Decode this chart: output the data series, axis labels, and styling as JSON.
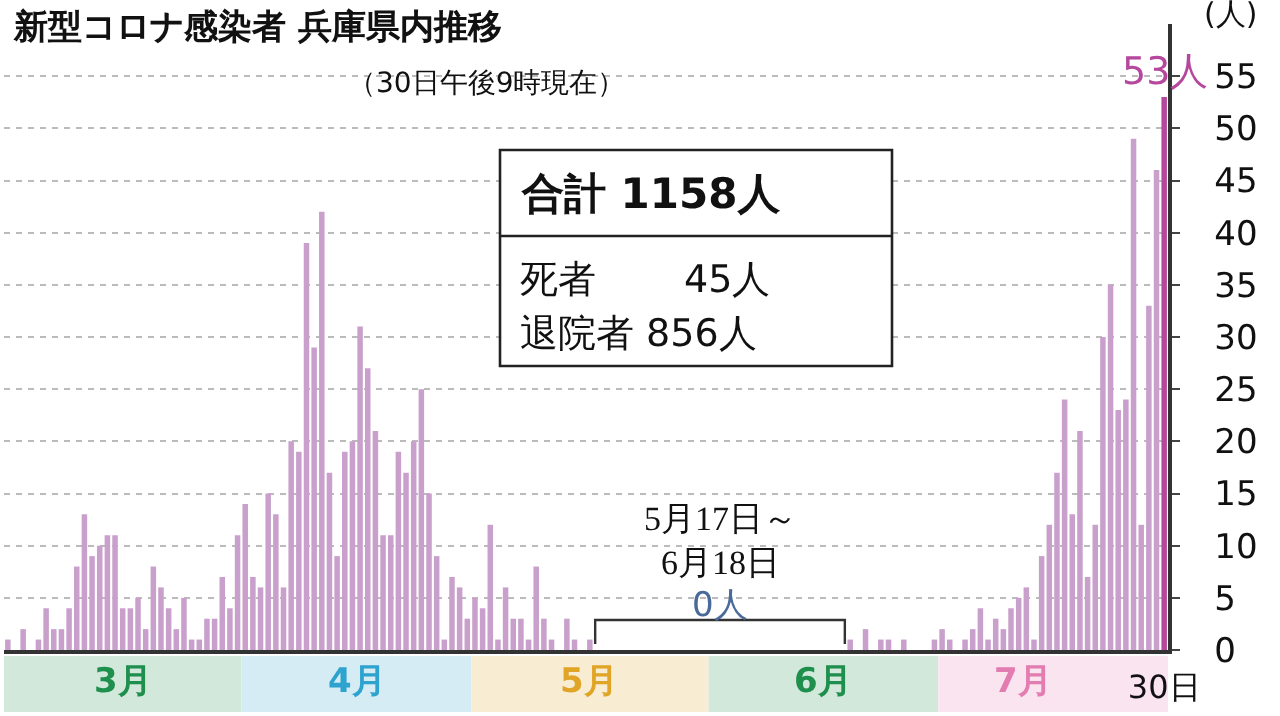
{
  "chart_data": {
    "type": "bar",
    "title": "新型コロナ感染者 兵庫県内推移",
    "subtitle": "（30日午後9時現在）",
    "ylabel": "(人)",
    "categories": [
      null,
      null,
      null,
      null,
      null,
      null,
      null,
      null,
      null,
      null,
      null,
      null,
      null,
      null,
      null,
      null,
      null,
      null,
      null,
      null,
      null,
      null,
      null,
      null,
      null,
      null,
      null,
      null,
      null,
      null,
      null,
      null,
      null,
      null,
      null,
      null,
      null,
      null,
      null,
      null,
      null,
      null,
      null,
      null,
      null,
      null,
      null,
      null,
      null,
      null,
      null,
      null,
      null,
      null,
      null,
      null,
      null,
      null,
      null,
      null,
      null,
      null,
      null,
      null,
      null,
      null,
      null,
      null,
      null,
      null,
      null,
      null,
      null,
      null,
      null,
      null,
      null,
      null,
      null,
      null,
      null,
      null,
      null,
      null,
      null,
      null,
      null,
      null,
      null,
      null,
      null,
      null,
      null,
      null,
      null,
      null,
      null,
      null,
      null,
      null,
      null,
      null,
      null,
      null,
      null,
      null,
      null,
      null,
      null,
      null,
      null,
      null,
      null,
      null,
      null,
      null,
      null,
      null,
      null,
      null,
      null,
      null,
      null,
      null,
      null,
      null,
      null,
      null,
      null,
      null,
      null,
      null,
      null,
      null,
      null,
      null,
      null,
      null,
      null,
      null,
      null,
      null,
      null,
      null,
      null,
      null,
      null,
      null,
      null,
      null,
      null,
      "30日"
    ],
    "values": [
      1,
      0,
      2,
      0,
      1,
      4,
      2,
      2,
      4,
      8,
      13,
      9,
      10,
      11,
      11,
      4,
      4,
      5,
      2,
      8,
      6,
      4,
      2,
      5,
      1,
      1,
      3,
      3,
      7,
      4,
      11,
      14,
      7,
      6,
      15,
      13,
      6,
      20,
      19,
      39,
      29,
      42,
      17,
      9,
      19,
      20,
      31,
      27,
      21,
      11,
      11,
      19,
      17,
      20,
      25,
      15,
      9,
      1,
      7,
      6,
      3,
      5,
      4,
      12,
      1,
      6,
      3,
      3,
      1,
      8,
      3,
      1,
      0,
      3,
      1,
      0,
      1,
      0,
      0,
      0,
      0,
      0,
      0,
      0,
      0,
      0,
      0,
      0,
      0,
      0,
      0,
      0,
      0,
      0,
      0,
      0,
      0,
      0,
      0,
      0,
      0,
      0,
      0,
      0,
      0,
      0,
      0,
      0,
      0,
      0,
      1,
      0,
      2,
      0,
      1,
      1,
      0,
      1,
      0,
      0,
      0,
      1,
      2,
      1,
      0,
      1,
      2,
      4,
      1,
      3,
      2,
      4,
      5,
      6,
      1,
      9,
      12,
      17,
      24,
      13,
      21,
      7,
      12,
      30,
      35,
      23,
      24,
      49,
      12,
      33,
      46,
      53
    ],
    "colors": [
      "#c9a0cc",
      "#c9a0cc",
      "#c9a0cc",
      "#c9a0cc",
      "#c9a0cc",
      "#c9a0cc",
      "#c9a0cc",
      "#c9a0cc",
      "#c9a0cc",
      "#c9a0cc",
      "#c9a0cc",
      "#c9a0cc",
      "#c9a0cc",
      "#c9a0cc",
      "#c9a0cc",
      "#c9a0cc",
      "#c9a0cc",
      "#c9a0cc",
      "#c9a0cc",
      "#c9a0cc",
      "#c9a0cc",
      "#c9a0cc",
      "#c9a0cc",
      "#c9a0cc",
      "#c9a0cc",
      "#c9a0cc",
      "#c9a0cc",
      "#c9a0cc",
      "#c9a0cc",
      "#c9a0cc",
      "#c9a0cc",
      "#c9a0cc",
      "#c9a0cc",
      "#c9a0cc",
      "#c9a0cc",
      "#c9a0cc",
      "#c9a0cc",
      "#c9a0cc",
      "#c9a0cc",
      "#c9a0cc",
      "#c9a0cc",
      "#c9a0cc",
      "#c9a0cc",
      "#c9a0cc",
      "#c9a0cc",
      "#c9a0cc",
      "#c9a0cc",
      "#c9a0cc",
      "#c9a0cc",
      "#c9a0cc",
      "#c9a0cc",
      "#c9a0cc",
      "#c9a0cc",
      "#c9a0cc",
      "#c9a0cc",
      "#c9a0cc",
      "#c9a0cc",
      "#c9a0cc",
      "#c9a0cc",
      "#c9a0cc",
      "#c9a0cc",
      "#c9a0cc",
      "#c9a0cc",
      "#c9a0cc",
      "#c9a0cc",
      "#c9a0cc",
      "#c9a0cc",
      "#c9a0cc",
      "#c9a0cc",
      "#c9a0cc",
      "#c9a0cc",
      "#c9a0cc",
      "#c9a0cc",
      "#c9a0cc",
      "#c9a0cc",
      "#c9a0cc",
      "#c9a0cc",
      "#c9a0cc",
      "#c9a0cc",
      "#c9a0cc",
      "#c9a0cc",
      "#c9a0cc",
      "#c9a0cc",
      "#c9a0cc",
      "#c9a0cc",
      "#c9a0cc",
      "#c9a0cc",
      "#c9a0cc",
      "#c9a0cc",
      "#c9a0cc",
      "#c9a0cc",
      "#c9a0cc",
      "#c9a0cc",
      "#c9a0cc",
      "#c9a0cc",
      "#c9a0cc",
      "#c9a0cc",
      "#c9a0cc",
      "#c9a0cc",
      "#c9a0cc",
      "#c9a0cc",
      "#c9a0cc",
      "#c9a0cc",
      "#c9a0cc",
      "#c9a0cc",
      "#c9a0cc",
      "#c9a0cc",
      "#c9a0cc",
      "#c9a0cc",
      "#c9a0cc",
      "#c9a0cc",
      "#c9a0cc",
      "#c9a0cc",
      "#c9a0cc",
      "#c9a0cc",
      "#c9a0cc",
      "#c9a0cc",
      "#c9a0cc",
      "#c9a0cc",
      "#c9a0cc",
      "#c9a0cc",
      "#c9a0cc",
      "#c9a0cc",
      "#c9a0cc",
      "#c9a0cc",
      "#c9a0cc",
      "#c9a0cc",
      "#c9a0cc",
      "#c9a0cc",
      "#c9a0cc",
      "#c9a0cc",
      "#c9a0cc",
      "#c9a0cc",
      "#c9a0cc",
      "#c9a0cc",
      "#c9a0cc",
      "#c9a0cc",
      "#c9a0cc",
      "#c9a0cc",
      "#c9a0cc",
      "#c9a0cc",
      "#c9a0cc",
      "#c9a0cc",
      "#c9a0cc",
      "#c9a0cc",
      "#c9a0cc",
      "#c9a0cc",
      "#c9a0cc",
      "#c9a0cc",
      "#c9a0cc",
      "#c9a0cc",
      "#b5479d"
    ],
    "value_labels": [
      null,
      null,
      null,
      null,
      null,
      null,
      null,
      null,
      null,
      null,
      null,
      null,
      null,
      null,
      null,
      null,
      null,
      null,
      null,
      null,
      null,
      null,
      null,
      null,
      null,
      null,
      null,
      null,
      null,
      null,
      null,
      null,
      null,
      null,
      null,
      null,
      null,
      null,
      null,
      null,
      null,
      null,
      null,
      null,
      null,
      null,
      null,
      null,
      null,
      null,
      null,
      null,
      null,
      null,
      null,
      null,
      null,
      null,
      null,
      null,
      null,
      null,
      null,
      null,
      null,
      null,
      null,
      null,
      null,
      null,
      null,
      null,
      null,
      null,
      null,
      null,
      null,
      null,
      null,
      null,
      null,
      null,
      null,
      null,
      null,
      null,
      null,
      null,
      null,
      null,
      null,
      null,
      null,
      null,
      null,
      null,
      null,
      null,
      null,
      null,
      null,
      null,
      null,
      null,
      null,
      null,
      null,
      null,
      null,
      null,
      null,
      null,
      null,
      null,
      null,
      null,
      null,
      null,
      null,
      null,
      null,
      null,
      null,
      null,
      null,
      null,
      null,
      null,
      null,
      null,
      null,
      null,
      null,
      null,
      null,
      null,
      null,
      null,
      null,
      null,
      null,
      null,
      null,
      null,
      null,
      null,
      null,
      null,
      null,
      null,
      null,
      "53人"
    ],
    "ylim": [
      0,
      60
    ],
    "yticks": [
      0,
      5,
      10,
      15,
      20,
      25,
      30,
      35,
      40,
      45,
      50,
      55
    ],
    "grid": "y",
    "annotations": [
      "合計 1158人",
      "死者　　 45人",
      "退院者 856人",
      "5月17日～\n6月18日",
      "0人",
      "3月",
      "4月",
      "5月",
      "6月",
      "7月"
    ]
  }
}
